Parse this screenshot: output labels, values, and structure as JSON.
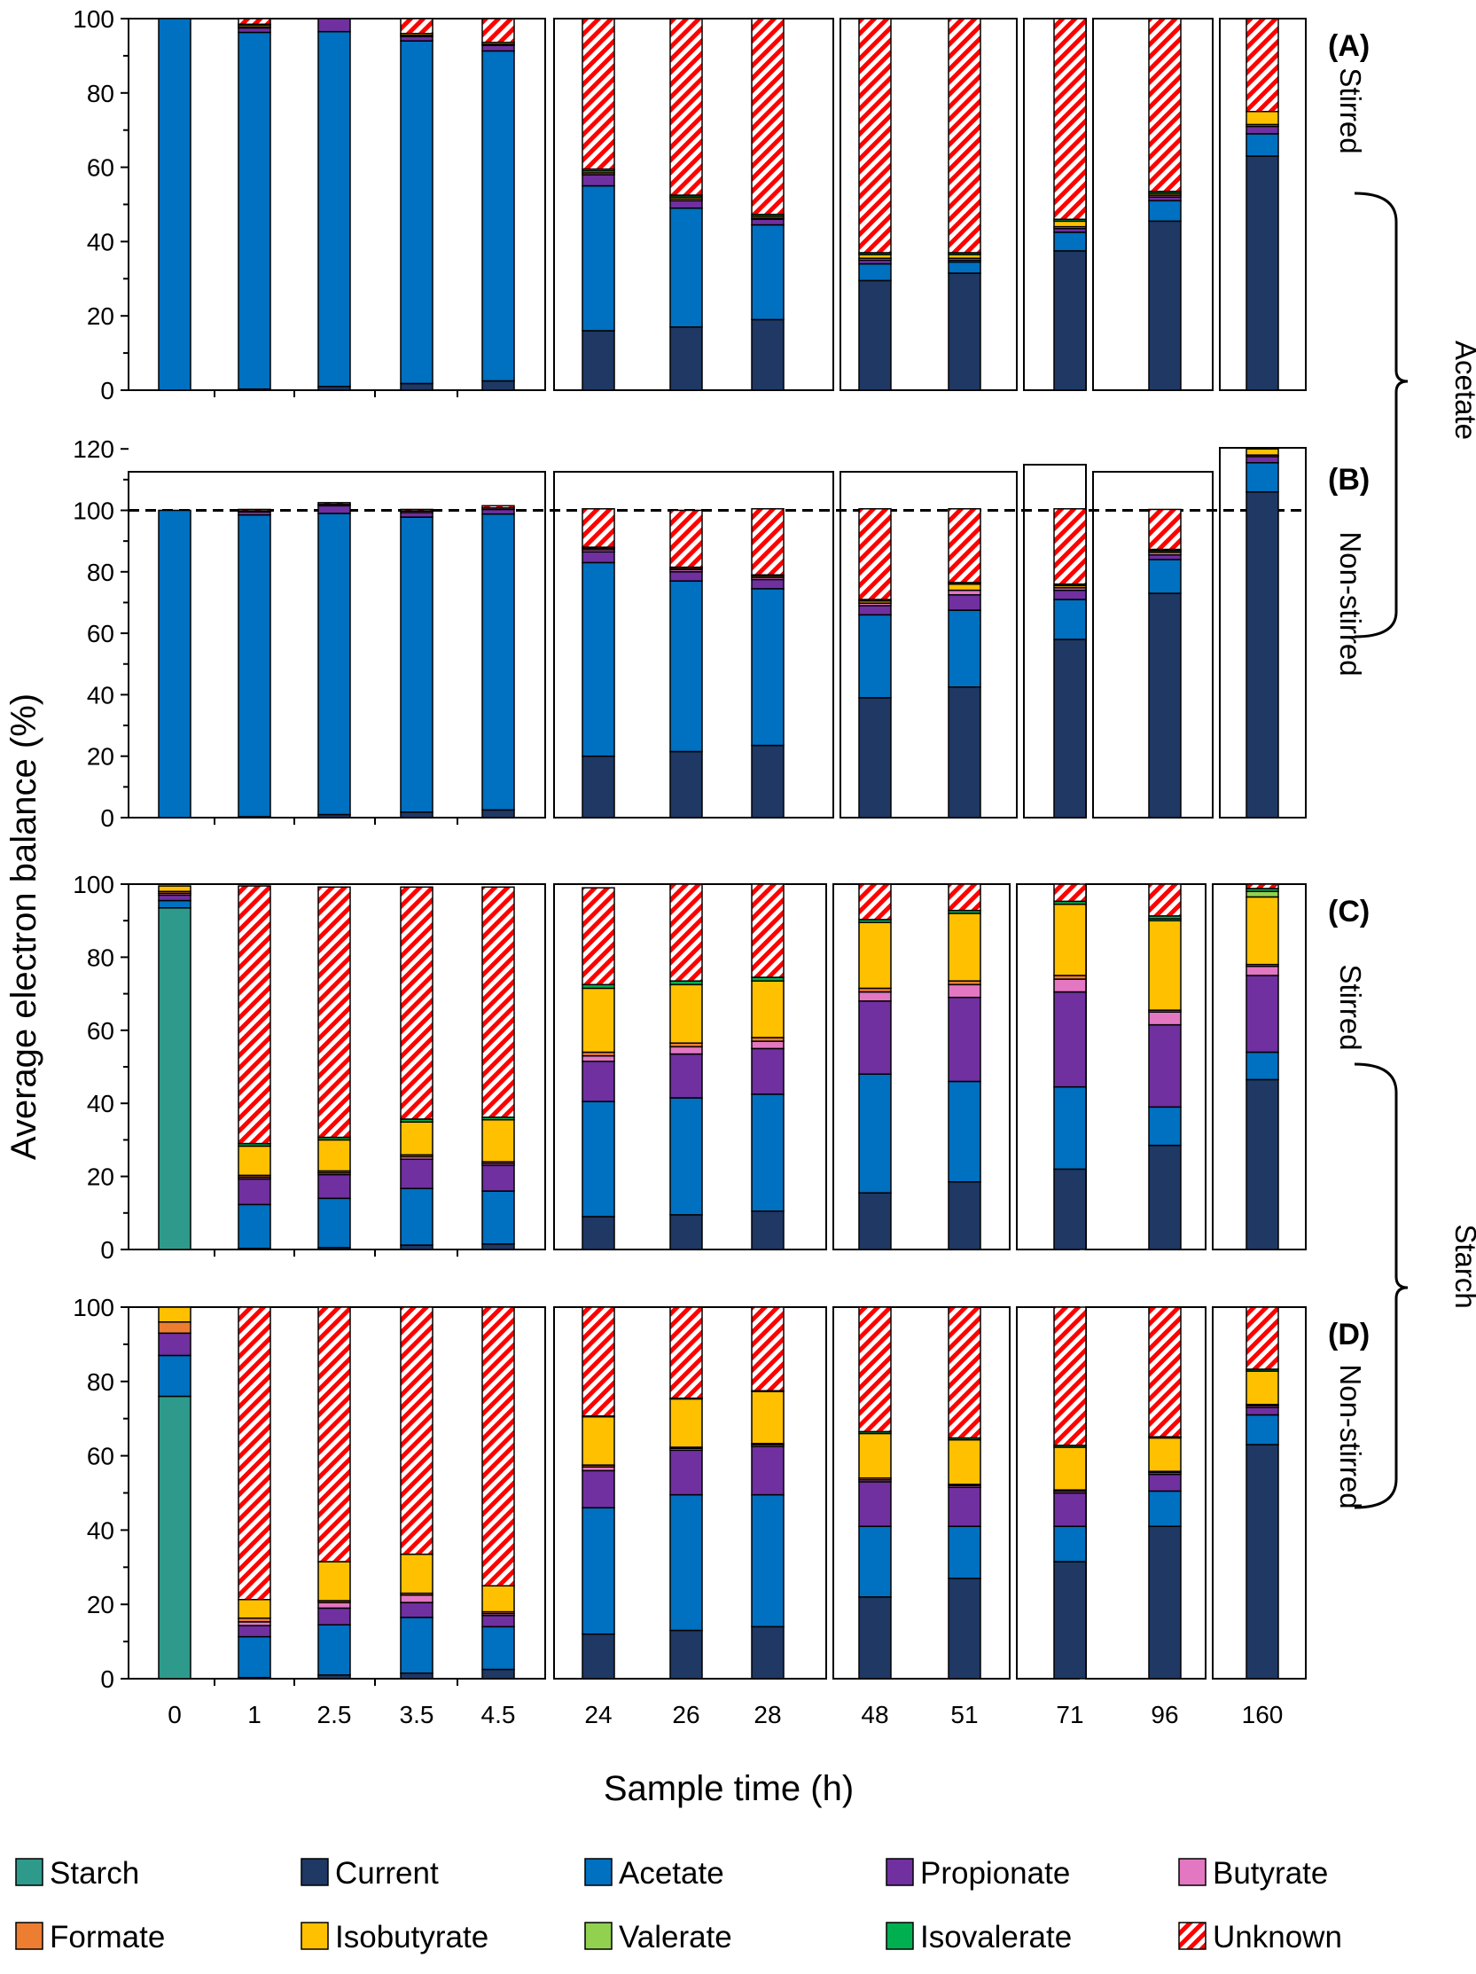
{
  "figure": {
    "ylabel": "Average electron balance (%)",
    "xlabel": "Sample time (h)",
    "groups": {
      "acetate": "Acetate",
      "starch": "Starch"
    }
  },
  "components": [
    {
      "key": "starch",
      "name": "Starch",
      "color": "#2e9a8b"
    },
    {
      "key": "current",
      "name": "Current",
      "color": "#1f3864"
    },
    {
      "key": "acetate",
      "name": "Acetate",
      "color": "#0070c0"
    },
    {
      "key": "propionate",
      "name": "Propionate",
      "color": "#7030a0"
    },
    {
      "key": "butyrate",
      "name": "Butyrate",
      "color": "#e377c2"
    },
    {
      "key": "formate",
      "name": "Formate",
      "color": "#ed7d31"
    },
    {
      "key": "isobutyrate",
      "name": "Isobutyrate",
      "color": "#ffc000"
    },
    {
      "key": "valerate",
      "name": "Valerate",
      "color": "#92d050"
    },
    {
      "key": "isovalerate",
      "name": "Isovalerate",
      "color": "#00b050"
    },
    {
      "key": "unknown",
      "name": "Unknown",
      "color": "#ff0000",
      "pattern": "hatched"
    }
  ],
  "chart_data": [
    {
      "type": "bar",
      "stacked": true,
      "panel": "(A)",
      "substrate": "Acetate",
      "condition": "Stirred",
      "categories": [
        "0",
        "1",
        "2.5",
        "3.5",
        "4.5",
        "24",
        "26",
        "28",
        "48",
        "51",
        "71",
        "96",
        "160"
      ],
      "ylim": [
        0,
        100
      ],
      "yticks": [
        "0",
        "20",
        "40",
        "60",
        "80",
        "100"
      ],
      "series": [
        {
          "name": "Starch",
          "values": [
            0,
            0,
            0,
            0,
            0,
            0,
            0,
            0,
            0,
            0,
            0,
            0,
            0
          ]
        },
        {
          "name": "Current",
          "values": [
            0,
            0.3,
            1,
            1.8,
            2.5,
            16,
            17,
            19,
            29.5,
            31.5,
            37.5,
            45.5,
            63
          ]
        },
        {
          "name": "Acetate",
          "values": [
            100,
            96,
            95.5,
            92.2,
            88.8,
            39,
            32,
            25.5,
            4.5,
            3,
            5,
            5.5,
            6
          ]
        },
        {
          "name": "Propionate",
          "values": [
            0,
            1.2,
            3.5,
            1.2,
            1.5,
            3,
            2,
            1.5,
            1,
            0.5,
            1,
            1,
            2
          ]
        },
        {
          "name": "Butyrate",
          "values": [
            0,
            0.3,
            0,
            0.3,
            0.3,
            0.5,
            0.5,
            0.3,
            0.5,
            0.5,
            0.5,
            0.5,
            0.5
          ]
        },
        {
          "name": "Formate",
          "values": [
            0,
            0,
            0,
            0,
            0,
            0,
            0,
            0,
            0,
            0,
            0,
            0,
            0
          ]
        },
        {
          "name": "Isobutyrate",
          "values": [
            0,
            0.5,
            0,
            0.5,
            0.5,
            0.5,
            0.5,
            0.5,
            1,
            1,
            1.5,
            0.5,
            3.5
          ]
        },
        {
          "name": "Valerate",
          "values": [
            0,
            0,
            0,
            0,
            0,
            0,
            0,
            0,
            0,
            0,
            0,
            0,
            0
          ]
        },
        {
          "name": "Isovalerate",
          "values": [
            0,
            0.2,
            0,
            0,
            0,
            0.5,
            0.5,
            0.5,
            0.5,
            0.5,
            0.5,
            0.5,
            0
          ]
        },
        {
          "name": "Unknown",
          "values": [
            0,
            1.5,
            0,
            4,
            6.4,
            40.5,
            47.5,
            52.7,
            63,
            63,
            54,
            46.5,
            25
          ]
        }
      ]
    },
    {
      "type": "bar",
      "stacked": true,
      "panel": "(B)",
      "substrate": "Acetate",
      "condition": "Non-stirred",
      "categories": [
        "0",
        "1",
        "2.5",
        "3.5",
        "4.5",
        "24",
        "26",
        "28",
        "48",
        "51",
        "71",
        "96",
        "160"
      ],
      "ylim": [
        0,
        120
      ],
      "yticks": [
        "0",
        "20",
        "40",
        "60",
        "80",
        "100",
        "120"
      ],
      "reference_line": 100,
      "series": [
        {
          "name": "Starch",
          "values": [
            0,
            0,
            0,
            0,
            0,
            0,
            0,
            0,
            0,
            0,
            0,
            0,
            0
          ]
        },
        {
          "name": "Current",
          "values": [
            0,
            0.3,
            1,
            1.8,
            2.5,
            20,
            21.5,
            23.5,
            39,
            42.5,
            58,
            73,
            106
          ]
        },
        {
          "name": "Acetate",
          "values": [
            100,
            98.2,
            98,
            96,
            96.3,
            63,
            55.5,
            51,
            27,
            25,
            13,
            11,
            9.5
          ]
        },
        {
          "name": "Propionate",
          "values": [
            0,
            1,
            2.5,
            1.5,
            1.5,
            3.5,
            3,
            3,
            3,
            5,
            3,
            1.5,
            2
          ]
        },
        {
          "name": "Butyrate",
          "values": [
            0,
            0.3,
            0.5,
            0.5,
            0.5,
            0.7,
            0.7,
            0.7,
            0.8,
            1.5,
            0.8,
            0.8,
            0.5
          ]
        },
        {
          "name": "Formate",
          "values": [
            0,
            0,
            0,
            0,
            0,
            0,
            0,
            0,
            0,
            0,
            0,
            0,
            0
          ]
        },
        {
          "name": "Isobutyrate",
          "values": [
            0,
            0,
            0,
            0,
            0,
            0.5,
            0.5,
            0.5,
            0.7,
            2,
            0.7,
            0.5,
            4
          ]
        },
        {
          "name": "Valerate",
          "values": [
            0,
            0,
            0,
            0,
            0,
            0,
            0,
            0,
            0,
            0,
            0,
            0,
            0
          ]
        },
        {
          "name": "Isovalerate",
          "values": [
            0,
            0,
            0,
            0,
            0,
            0.3,
            0.3,
            0.3,
            0.5,
            0.5,
            0.5,
            0.5,
            0
          ]
        },
        {
          "name": "Unknown",
          "values": [
            0,
            0.5,
            0.5,
            0.5,
            0.7,
            12.5,
            18.5,
            21.5,
            29.5,
            24,
            24.5,
            13,
            0
          ]
        }
      ]
    },
    {
      "type": "bar",
      "stacked": true,
      "panel": "(C)",
      "substrate": "Starch",
      "condition": "Stirred",
      "categories": [
        "0",
        "1",
        "2.5",
        "3.5",
        "4.5",
        "24",
        "26",
        "28",
        "48",
        "51",
        "71",
        "96",
        "160"
      ],
      "ylim": [
        0,
        100
      ],
      "yticks": [
        "0",
        "20",
        "40",
        "60",
        "80",
        "100"
      ],
      "series": [
        {
          "name": "Starch",
          "values": [
            93.5,
            0,
            0,
            0,
            0,
            0,
            0,
            0,
            0,
            0,
            0,
            0,
            0
          ]
        },
        {
          "name": "Current",
          "values": [
            0,
            0.3,
            0.5,
            1.2,
            1.5,
            9,
            9.5,
            10.5,
            15.5,
            18.5,
            22,
            28.5,
            46.5
          ]
        },
        {
          "name": "Acetate",
          "values": [
            2,
            12,
            13.5,
            15.5,
            14.5,
            31.5,
            32,
            32,
            32.5,
            27.5,
            22.5,
            10.5,
            7.5
          ]
        },
        {
          "name": "Propionate",
          "values": [
            1.5,
            7,
            6.5,
            8,
            7,
            11,
            12,
            12.5,
            20,
            23,
            26,
            22.5,
            21
          ]
        },
        {
          "name": "Butyrate",
          "values": [
            0.5,
            0.5,
            0.5,
            0.7,
            0.5,
            1.5,
            2,
            2,
            2.5,
            3.5,
            3.5,
            3.5,
            2.5
          ]
        },
        {
          "name": "Formate",
          "values": [
            0.5,
            0.5,
            0.5,
            0.5,
            0.5,
            1,
            1,
            1,
            1,
            1,
            1,
            0.5,
            0.5
          ]
        },
        {
          "name": "Isobutyrate",
          "values": [
            1.5,
            8,
            8.5,
            9,
            11.5,
            17.5,
            16,
            15.5,
            18,
            18.5,
            19.5,
            24.5,
            18.5
          ]
        },
        {
          "name": "Valerate",
          "values": [
            0,
            0,
            0,
            0,
            0,
            0,
            0,
            0,
            0,
            0,
            0,
            0.5,
            1.5
          ]
        },
        {
          "name": "Isovalerate",
          "values": [
            0,
            0.7,
            0.7,
            0.8,
            0.7,
            1,
            1,
            1,
            0.8,
            0.8,
            0.8,
            0.8,
            0.8
          ]
        },
        {
          "name": "Unknown",
          "values": [
            0,
            70.5,
            68.5,
            63.5,
            63,
            26.5,
            26.5,
            25.5,
            9.7,
            7.2,
            4.7,
            8.7,
            1.2
          ]
        }
      ]
    },
    {
      "type": "bar",
      "stacked": true,
      "panel": "(D)",
      "substrate": "Starch",
      "condition": "Non-stirred",
      "categories": [
        "0",
        "1",
        "2.5",
        "3.5",
        "4.5",
        "24",
        "26",
        "28",
        "48",
        "51",
        "71",
        "96",
        "160"
      ],
      "ylim": [
        0,
        100
      ],
      "yticks": [
        "0",
        "20",
        "40",
        "60",
        "80",
        "100"
      ],
      "series": [
        {
          "name": "Starch",
          "values": [
            76,
            0,
            0,
            0,
            0,
            0,
            0,
            0,
            0,
            0,
            0,
            0,
            0
          ]
        },
        {
          "name": "Current",
          "values": [
            0,
            0.3,
            1,
            1.5,
            2.5,
            12,
            13,
            14,
            22,
            27,
            31.5,
            41,
            63
          ]
        },
        {
          "name": "Acetate",
          "values": [
            11,
            11,
            13.5,
            15,
            11.5,
            34,
            36.5,
            35.5,
            19,
            14,
            9.5,
            9.5,
            8
          ]
        },
        {
          "name": "Propionate",
          "values": [
            6,
            3,
            4.5,
            4,
            3,
            10,
            12,
            13,
            12,
            10.5,
            9,
            4.5,
            2
          ]
        },
        {
          "name": "Butyrate",
          "values": [
            0,
            1,
            1.5,
            2,
            0.5,
            1,
            0.5,
            0.5,
            0.5,
            0.5,
            0.5,
            0.5,
            0.5
          ]
        },
        {
          "name": "Formate",
          "values": [
            3,
            1,
            0.5,
            0.5,
            0.5,
            0.5,
            0.3,
            0.3,
            0.5,
            0.3,
            0.3,
            0.3,
            0.3
          ]
        },
        {
          "name": "Isobutyrate",
          "values": [
            4,
            5,
            10.5,
            10.5,
            7,
            13,
            13,
            14,
            12,
            12,
            11.5,
            9,
            9
          ]
        },
        {
          "name": "Valerate",
          "values": [
            0,
            0,
            0,
            0,
            0,
            0,
            0,
            0,
            0,
            0,
            0,
            0,
            0
          ]
        },
        {
          "name": "Isovalerate",
          "values": [
            0,
            0,
            0,
            0,
            0,
            0.2,
            0.2,
            0.2,
            0.5,
            0.5,
            0.5,
            0.3,
            0.5
          ]
        },
        {
          "name": "Unknown",
          "values": [
            0,
            78.7,
            68.5,
            66.5,
            75,
            29.3,
            24.5,
            22.5,
            33.5,
            35.2,
            37.2,
            34.9,
            16.7
          ]
        }
      ]
    }
  ]
}
